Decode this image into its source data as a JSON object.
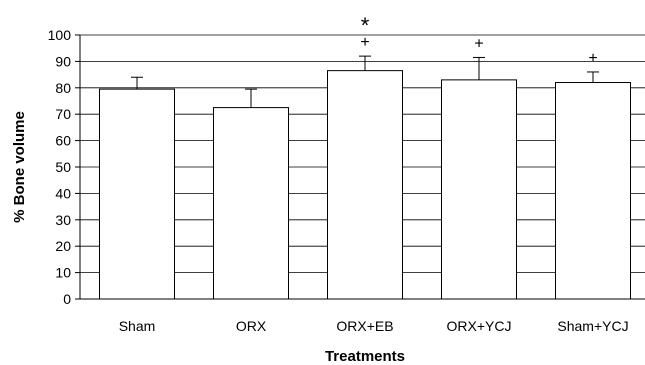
{
  "chart_data": {
    "type": "bar",
    "title": "",
    "xlabel": "Treatments",
    "ylabel": "% Bone volume",
    "ylim": [
      0,
      100
    ],
    "yticks": [
      0,
      10,
      20,
      30,
      40,
      50,
      60,
      70,
      80,
      90,
      100
    ],
    "grid": true,
    "categories": [
      "Sham",
      "ORX",
      "ORX+EB",
      "ORX+YCJ",
      "Sham+YCJ"
    ],
    "values": [
      79.5,
      72.5,
      86.5,
      83,
      82
    ],
    "errors": [
      4.5,
      7,
      5.5,
      8.5,
      4
    ],
    "annotations": [
      {
        "category": "ORX+EB",
        "symbols": [
          "*",
          "+"
        ]
      },
      {
        "category": "ORX+YCJ",
        "symbols": [
          "+"
        ]
      },
      {
        "category": "Sham+YCJ",
        "symbols": [
          "+"
        ]
      }
    ],
    "colors": {
      "bar_fill": "#ffffff",
      "bar_stroke": "#000000",
      "grid": "#000000"
    }
  }
}
